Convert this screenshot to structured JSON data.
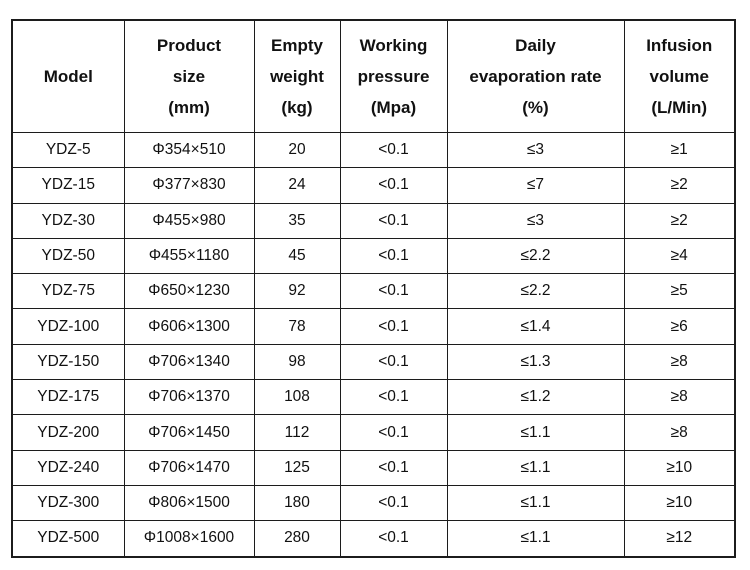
{
  "colors": {
    "background": "#ffffff",
    "border": "#1c1c1c",
    "text": "#111111"
  },
  "table": {
    "name": "product-specifications-table",
    "headers": [
      {
        "id": "model",
        "text": "Model"
      },
      {
        "id": "product_size",
        "text": "Product\nsize\n(mm)"
      },
      {
        "id": "empty_weight",
        "text": "Empty\nweight\n(kg)"
      },
      {
        "id": "working_pressure",
        "text": "Working\npressure\n(Mpa)"
      },
      {
        "id": "evaporation_rate",
        "text": "Daily\nevaporation rate\n(%)"
      },
      {
        "id": "infusion_volume",
        "text": "Infusion\nvolume\n(L/Min)"
      }
    ],
    "rows": [
      {
        "model": "YDZ-5",
        "product_size": "Φ354×510",
        "empty_weight": "20",
        "working_pressure": "<0.1",
        "evaporation_rate": "≤3",
        "infusion_volume": "≥1"
      },
      {
        "model": "YDZ-15",
        "product_size": "Φ377×830",
        "empty_weight": "24",
        "working_pressure": "<0.1",
        "evaporation_rate": "≤7",
        "infusion_volume": "≥2"
      },
      {
        "model": "YDZ-30",
        "product_size": "Φ455×980",
        "empty_weight": "35",
        "working_pressure": "<0.1",
        "evaporation_rate": "≤3",
        "infusion_volume": "≥2"
      },
      {
        "model": "YDZ-50",
        "product_size": "Φ455×1180",
        "empty_weight": "45",
        "working_pressure": "<0.1",
        "evaporation_rate": "≤2.2",
        "infusion_volume": "≥4"
      },
      {
        "model": "YDZ-75",
        "product_size": "Φ650×1230",
        "empty_weight": "92",
        "working_pressure": "<0.1",
        "evaporation_rate": "≤2.2",
        "infusion_volume": "≥5"
      },
      {
        "model": "YDZ-100",
        "product_size": "Φ606×1300",
        "empty_weight": "78",
        "working_pressure": "<0.1",
        "evaporation_rate": "≤1.4",
        "infusion_volume": "≥6"
      },
      {
        "model": "YDZ-150",
        "product_size": "Φ706×1340",
        "empty_weight": "98",
        "working_pressure": "<0.1",
        "evaporation_rate": "≤1.3",
        "infusion_volume": "≥8"
      },
      {
        "model": "YDZ-175",
        "product_size": "Φ706×1370",
        "empty_weight": "108",
        "working_pressure": "<0.1",
        "evaporation_rate": "≤1.2",
        "infusion_volume": "≥8"
      },
      {
        "model": "YDZ-200",
        "product_size": "Φ706×1450",
        "empty_weight": "112",
        "working_pressure": "<0.1",
        "evaporation_rate": "≤1.1",
        "infusion_volume": "≥8"
      },
      {
        "model": "YDZ-240",
        "product_size": "Φ706×1470",
        "empty_weight": "125",
        "working_pressure": "<0.1",
        "evaporation_rate": "≤1.1",
        "infusion_volume": "≥10"
      },
      {
        "model": "YDZ-300",
        "product_size": "Φ806×1500",
        "empty_weight": "180",
        "working_pressure": "<0.1",
        "evaporation_rate": "≤1.1",
        "infusion_volume": "≥10"
      },
      {
        "model": "YDZ-500",
        "product_size": "Φ1008×1600",
        "empty_weight": "280",
        "working_pressure": "<0.1",
        "evaporation_rate": "≤1.1",
        "infusion_volume": "≥12"
      }
    ]
  }
}
